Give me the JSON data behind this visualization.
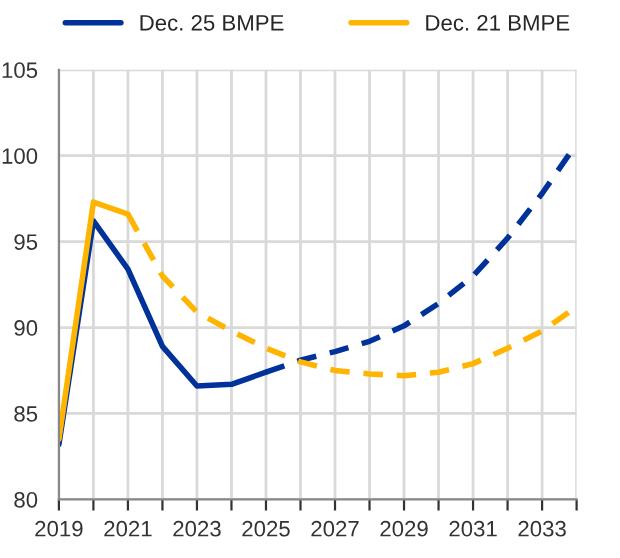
{
  "chart_data": {
    "type": "line",
    "xlim": [
      2019,
      2034
    ],
    "ylim": [
      80,
      105
    ],
    "xticks": [
      2019,
      {
        "value": 2020,
        "label": null
      },
      2021,
      {
        "value": 2022,
        "label": null
      },
      2023,
      {
        "value": 2024,
        "label": null
      },
      2025,
      {
        "value": 2026,
        "label": null
      },
      2027,
      {
        "value": 2028,
        "label": null
      },
      2029,
      {
        "value": 2030,
        "label": null
      },
      2031,
      {
        "value": 2032,
        "label": null
      },
      2033,
      {
        "value": 2034,
        "label": null
      }
    ],
    "yticks": [
      80,
      85,
      90,
      95,
      100,
      105
    ],
    "grid": true,
    "legend": "top",
    "marker": "none",
    "series": [
      {
        "name": "Dec. 25 BMPE",
        "color": "#003299",
        "line_style": "solid",
        "x": [
          2019,
          2020,
          2021,
          2022,
          2023,
          2024,
          2025
        ],
        "values": [
          83.2,
          96.2,
          93.4,
          88.9,
          86.6,
          86.7,
          87.4
        ]
      },
      {
        "color": "#003299",
        "line_style": "dashed",
        "x": [
          2025,
          2026,
          2027,
          2028,
          2029,
          2030,
          2031,
          2032,
          2033,
          2034
        ],
        "values": [
          87.4,
          88.1,
          88.6,
          89.2,
          90.1,
          91.4,
          93.0,
          95.2,
          97.8,
          100.7
        ]
      },
      {
        "name": "Dec. 21 BMPE",
        "color": "#ffb400",
        "line_style": "solid",
        "x": [
          2019,
          2020,
          2021
        ],
        "values": [
          83.5,
          97.3,
          96.6
        ]
      },
      {
        "color": "#ffb400",
        "line_style": "dashed",
        "x": [
          2021,
          2022,
          2023,
          2024,
          2025,
          2026,
          2027,
          2028,
          2029,
          2030,
          2031,
          2032,
          2033,
          2034
        ],
        "values": [
          96.6,
          93.0,
          90.9,
          89.8,
          88.8,
          88.0,
          87.5,
          87.3,
          87.2,
          87.4,
          87.9,
          88.8,
          89.8,
          91.2
        ]
      }
    ]
  }
}
